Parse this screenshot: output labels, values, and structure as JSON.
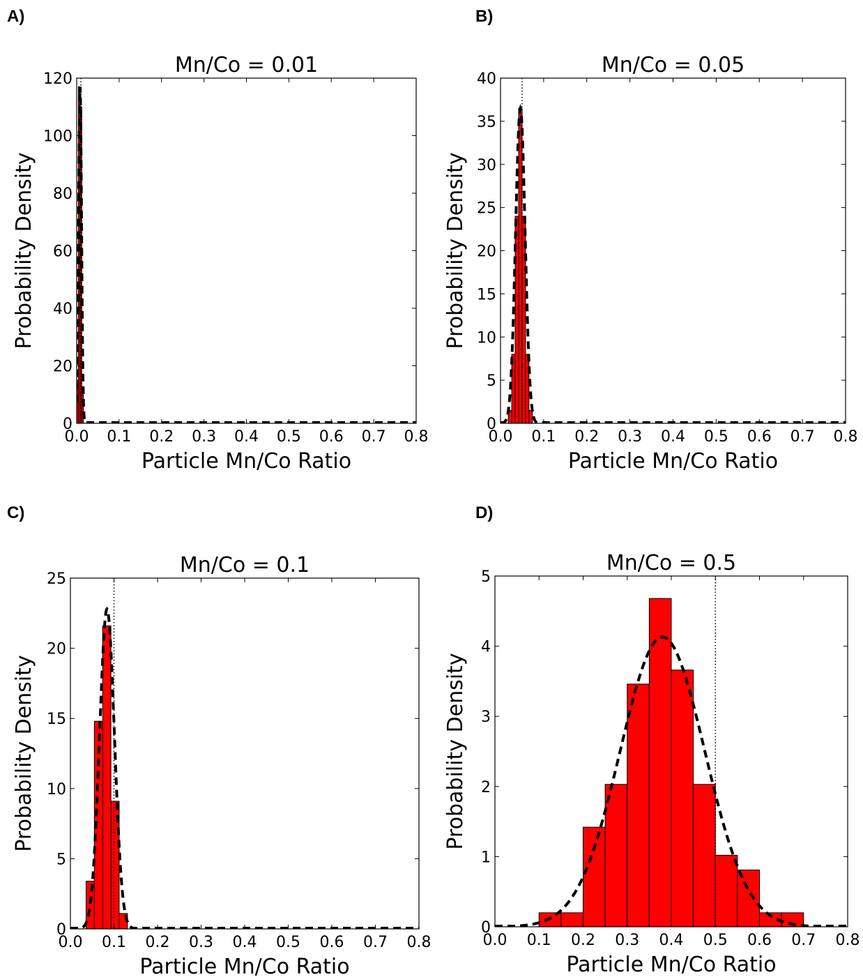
{
  "figure": {
    "panel_labels": [
      "A)",
      "B)",
      "C)",
      "D)"
    ]
  },
  "chart_data": [
    {
      "type": "bar",
      "title": "Mn/Co = 0.01",
      "xlabel": "Particle Mn/Co Ratio",
      "ylabel": "Probability Density",
      "xlim": [
        0.0,
        0.8
      ],
      "ylim": [
        0,
        120
      ],
      "xticks": [
        "0.0",
        "0.1",
        "0.2",
        "0.3",
        "0.4",
        "0.5",
        "0.6",
        "0.7",
        "0.8"
      ],
      "yticks": [
        "0",
        "20",
        "40",
        "60",
        "80",
        "100",
        "120"
      ],
      "bins": [
        {
          "x0": 0.0,
          "x1": 0.004,
          "value": 15
        },
        {
          "x0": 0.004,
          "x1": 0.008,
          "value": 117
        },
        {
          "x0": 0.008,
          "x1": 0.012,
          "value": 110
        },
        {
          "x0": 0.012,
          "x1": 0.016,
          "value": 10
        }
      ],
      "fit_curve": {
        "mean": 0.008,
        "sd": 0.0034,
        "peak": 117
      },
      "reference_line_x": 0.01,
      "colors": {
        "bar": "#ff0000",
        "edge": "#000000"
      }
    },
    {
      "type": "bar",
      "title": "Mn/Co = 0.05",
      "xlabel": "Particle Mn/Co Ratio",
      "ylabel": "Probability Density",
      "xlim": [
        0.0,
        0.8
      ],
      "ylim": [
        0,
        40
      ],
      "xticks": [
        "0.0",
        "0.1",
        "0.2",
        "0.3",
        "0.4",
        "0.5",
        "0.6",
        "0.7",
        "0.8"
      ],
      "yticks": [
        "0",
        "5",
        "10",
        "15",
        "20",
        "25",
        "30",
        "35",
        "40"
      ],
      "bins": [
        {
          "x0": 0.018,
          "x1": 0.026,
          "value": 1.5
        },
        {
          "x0": 0.026,
          "x1": 0.034,
          "value": 8
        },
        {
          "x0": 0.034,
          "x1": 0.042,
          "value": 24
        },
        {
          "x0": 0.042,
          "x1": 0.05,
          "value": 36.5
        },
        {
          "x0": 0.05,
          "x1": 0.058,
          "value": 24
        },
        {
          "x0": 0.058,
          "x1": 0.066,
          "value": 8
        },
        {
          "x0": 0.066,
          "x1": 0.074,
          "value": 1.5
        }
      ],
      "fit_curve": {
        "mean": 0.046,
        "sd": 0.011,
        "peak": 36.5
      },
      "reference_line_x": 0.05,
      "colors": {
        "bar": "#ff0000",
        "edge": "#000000"
      }
    },
    {
      "type": "bar",
      "title": "Mn/Co = 0.1",
      "xlabel": "Particle Mn/Co Ratio",
      "ylabel": "Probability Density",
      "xlim": [
        0.0,
        0.8
      ],
      "ylim": [
        0,
        25
      ],
      "xticks": [
        "0.0",
        "0.1",
        "0.2",
        "0.3",
        "0.4",
        "0.5",
        "0.6",
        "0.7",
        "0.8"
      ],
      "yticks": [
        "0",
        "5",
        "10",
        "15",
        "20",
        "25"
      ],
      "bins": [
        {
          "x0": 0.036,
          "x1": 0.055,
          "value": 3.4
        },
        {
          "x0": 0.055,
          "x1": 0.074,
          "value": 14.8
        },
        {
          "x0": 0.074,
          "x1": 0.093,
          "value": 21.6
        },
        {
          "x0": 0.093,
          "x1": 0.112,
          "value": 9.1
        },
        {
          "x0": 0.112,
          "x1": 0.131,
          "value": 1.1
        }
      ],
      "fit_curve": {
        "mean": 0.084,
        "sd": 0.017,
        "peak": 22.8
      },
      "reference_line_x": 0.1,
      "colors": {
        "bar": "#ff0000",
        "edge": "#000000"
      }
    },
    {
      "type": "bar",
      "title": "Mn/Co = 0.5",
      "xlabel": "Particle Mn/Co Ratio",
      "ylabel": "Probability Density",
      "xlim": [
        0.0,
        0.8
      ],
      "ylim": [
        0,
        5
      ],
      "xticks": [
        "0.0",
        "0.1",
        "0.2",
        "0.3",
        "0.4",
        "0.5",
        "0.6",
        "0.7",
        "0.8"
      ],
      "yticks": [
        "0",
        "1",
        "2",
        "3",
        "4",
        "5"
      ],
      "bins": [
        {
          "x0": 0.1,
          "x1": 0.15,
          "value": 0.2
        },
        {
          "x0": 0.15,
          "x1": 0.2,
          "value": 0.2
        },
        {
          "x0": 0.2,
          "x1": 0.25,
          "value": 1.42
        },
        {
          "x0": 0.25,
          "x1": 0.3,
          "value": 2.03
        },
        {
          "x0": 0.3,
          "x1": 0.35,
          "value": 3.46
        },
        {
          "x0": 0.35,
          "x1": 0.4,
          "value": 4.68
        },
        {
          "x0": 0.4,
          "x1": 0.45,
          "value": 3.66
        },
        {
          "x0": 0.45,
          "x1": 0.5,
          "value": 2.03
        },
        {
          "x0": 0.5,
          "x1": 0.55,
          "value": 1.02
        },
        {
          "x0": 0.55,
          "x1": 0.6,
          "value": 0.81
        },
        {
          "x0": 0.6,
          "x1": 0.65,
          "value": 0.2
        },
        {
          "x0": 0.65,
          "x1": 0.7,
          "value": 0.2
        }
      ],
      "fit_curve": {
        "mean": 0.38,
        "sd": 0.096,
        "peak": 4.13
      },
      "reference_line_x": 0.5,
      "colors": {
        "bar": "#ff0000",
        "edge": "#000000"
      }
    }
  ]
}
